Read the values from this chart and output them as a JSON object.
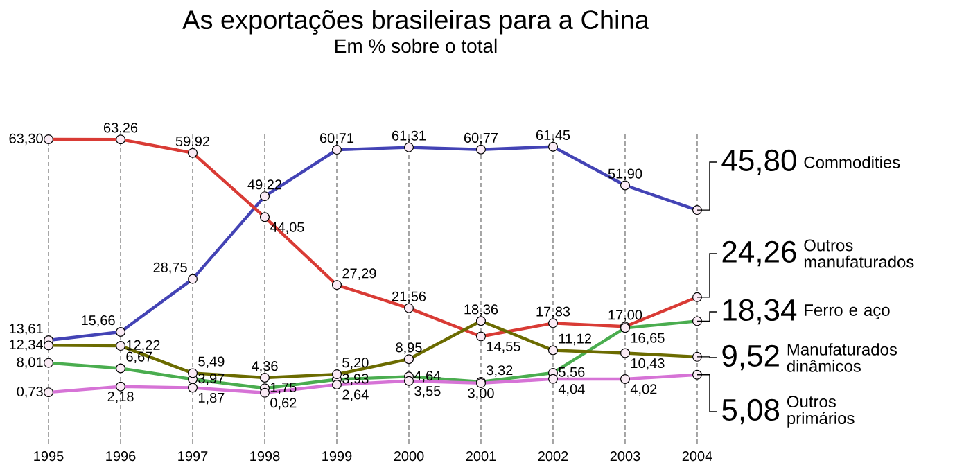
{
  "chart_data": {
    "type": "line",
    "title": "As exportações brasileiras para a China",
    "subtitle": "Em % sobre o total",
    "categories": [
      "1995",
      "1996",
      "1997",
      "1998",
      "1999",
      "2000",
      "2001",
      "2002",
      "2003",
      "2004"
    ],
    "series": [
      {
        "name": "Commodities",
        "color": "#4343b5",
        "values": [
          13.61,
          15.66,
          28.75,
          49.22,
          60.71,
          61.31,
          60.77,
          61.45,
          51.9,
          45.8
        ],
        "value_labels": [
          "13,61",
          "15,66",
          "28,75",
          "49,22",
          "60,71",
          "61,31",
          "60,77",
          "61,45",
          "51,90",
          "45,80"
        ]
      },
      {
        "name": "Outros manufaturados",
        "color": "#d93b35",
        "values": [
          63.3,
          63.26,
          59.92,
          44.05,
          27.29,
          21.56,
          14.55,
          17.83,
          17.0,
          24.26
        ],
        "value_labels": [
          "63,30",
          "63,26",
          "59,92",
          "44,05",
          "27,29",
          "21,56",
          "14,55",
          "17,83",
          "17,00",
          "24,26"
        ]
      },
      {
        "name": "Ferro e aço",
        "color": "#4aad4f",
        "values": [
          8.01,
          6.67,
          3.97,
          1.75,
          3.93,
          4.64,
          3.32,
          5.56,
          16.65,
          18.34
        ],
        "value_labels": [
          "8,01",
          "6,67",
          "3,97",
          "1,75",
          "3,93",
          "4,64",
          "3,32",
          "5,56",
          "16,65",
          "18,34"
        ]
      },
      {
        "name": "Manufaturados dinâmicos",
        "color": "#6b6b00",
        "values": [
          12.34,
          12.22,
          5.49,
          4.36,
          5.2,
          8.95,
          18.36,
          11.12,
          10.43,
          9.52
        ],
        "value_labels": [
          "12,34",
          "12,22",
          "5,49",
          "4,36",
          "5,20",
          "8,95",
          "18,36",
          "11,12",
          "10,43",
          "9,52"
        ]
      },
      {
        "name": "Outros primários",
        "color": "#d673d6",
        "values": [
          0.73,
          2.18,
          1.87,
          0.62,
          2.64,
          3.55,
          3.0,
          4.04,
          4.02,
          5.08
        ],
        "value_labels": [
          "0,73",
          "2,18",
          "1,87",
          "0,62",
          "2,64",
          "3,55",
          "3,00",
          "4,04",
          "4,02",
          "5,08"
        ]
      }
    ],
    "grid": "x",
    "marker": "circle",
    "tick_labels": "x"
  }
}
